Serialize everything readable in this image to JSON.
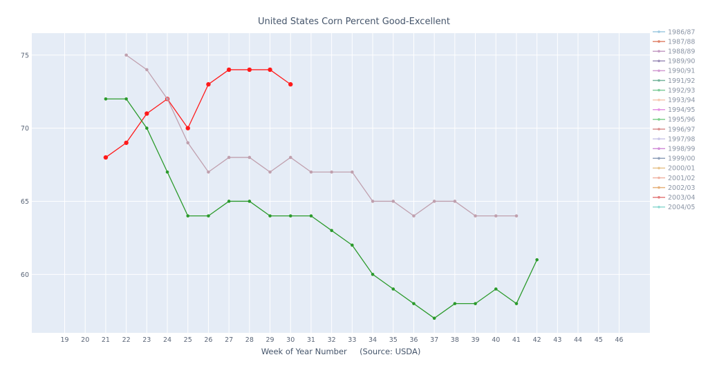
{
  "chart_data": {
    "type": "line",
    "title": "United States Corn Percent Good-Excellent",
    "xlabel": "Week of Year Number     (Source: USDA)",
    "ylabel": "",
    "x_ticks": [
      19,
      20,
      21,
      22,
      23,
      24,
      25,
      26,
      27,
      28,
      29,
      30,
      31,
      32,
      33,
      34,
      35,
      36,
      37,
      38,
      39,
      40,
      41,
      42,
      43,
      44,
      45,
      46
    ],
    "y_ticks": [
      60,
      65,
      70,
      75
    ],
    "xlim": [
      17.4,
      47.5
    ],
    "ylim": [
      56.0,
      76.5
    ],
    "grid": true,
    "legend_position": "right",
    "legend": [
      {
        "name": "1986/87",
        "color": "#9ecae1"
      },
      {
        "name": "1987/88",
        "color": "#e0846b"
      },
      {
        "name": "1988/89",
        "color": "#c49cc4"
      },
      {
        "name": "1989/90",
        "color": "#9d8fb8"
      },
      {
        "name": "1990/91",
        "color": "#d29bd2"
      },
      {
        "name": "1991/92",
        "color": "#74b39a"
      },
      {
        "name": "1992/93",
        "color": "#7fcc9a"
      },
      {
        "name": "1993/94",
        "color": "#f5c7b0"
      },
      {
        "name": "1994/95",
        "color": "#e38fe3"
      },
      {
        "name": "1995/96",
        "color": "#7ccf8a"
      },
      {
        "name": "1996/97",
        "color": "#d98c8c"
      },
      {
        "name": "1997/98",
        "color": "#c9c5e8"
      },
      {
        "name": "1998/99",
        "color": "#d28ed9"
      },
      {
        "name": "1999/00",
        "color": "#8f9fb8"
      },
      {
        "name": "2000/01",
        "color": "#e8c48e"
      },
      {
        "name": "2001/02",
        "color": "#f0b3a3"
      },
      {
        "name": "2002/03",
        "color": "#e6b07a"
      },
      {
        "name": "2003/04",
        "color": "#e37b7b"
      },
      {
        "name": "2004/05",
        "color": "#8fd9d2"
      }
    ],
    "series": [
      {
        "color": "#ff1a1a",
        "marker_size": 3.2,
        "x": [
          21,
          22,
          23,
          24,
          25,
          26,
          27,
          28,
          29,
          30
        ],
        "y": [
          68,
          69,
          71,
          72,
          70,
          73,
          74,
          74,
          74,
          73
        ]
      },
      {
        "color": "#c0a0ae",
        "marker_size": 2.3,
        "x": [
          22,
          23,
          24,
          25,
          26,
          27,
          28,
          29,
          30,
          31,
          32,
          33,
          34,
          35,
          36,
          37,
          38,
          39,
          40,
          41
        ],
        "y": [
          75,
          74,
          72,
          69,
          67,
          68,
          68,
          67,
          68,
          67,
          67,
          67,
          65,
          65,
          64,
          65,
          65,
          64,
          64,
          64
        ]
      },
      {
        "color": "#2b9a2b",
        "marker_size": 2.3,
        "x": [
          21,
          22,
          23,
          24,
          25,
          26,
          27,
          28,
          29,
          30,
          31,
          32,
          33,
          34,
          35,
          36,
          37,
          38,
          39,
          40,
          41,
          42
        ],
        "y": [
          72,
          72,
          70,
          67,
          64,
          64,
          65,
          65,
          64,
          64,
          64,
          63,
          62,
          60,
          59,
          58,
          57,
          58,
          58,
          59,
          58,
          61
        ]
      }
    ]
  }
}
